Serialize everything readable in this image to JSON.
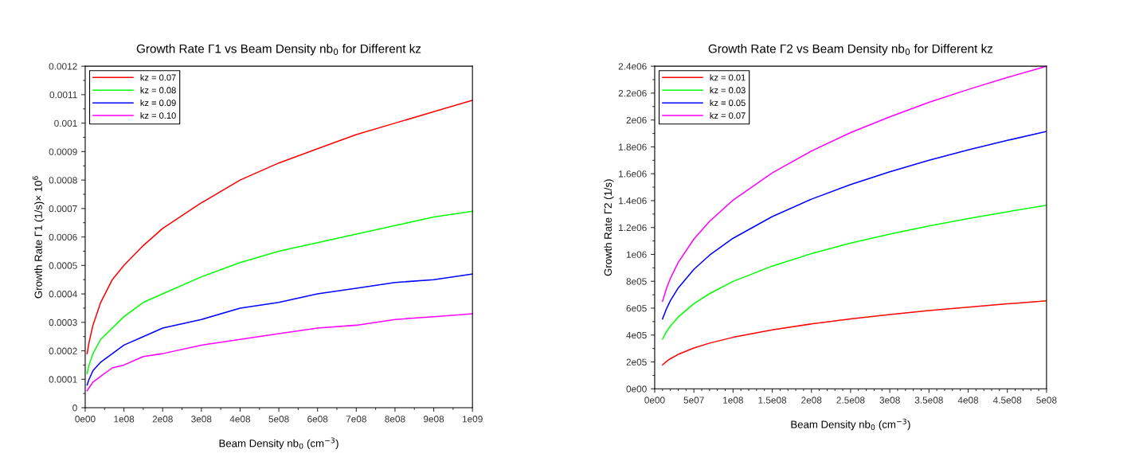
{
  "chart_data": [
    {
      "type": "line",
      "title": "Growth Rate Γ1 vs Beam Density nb$_{0}$ for Different kz",
      "xlabel": "Beam Density nb$_{0}$ (cm$^{−3}$)",
      "ylabel": "Growth Rate Γ1 (1/s)× 10$^{6}$",
      "x": [
        5000000.0,
        10000000.0,
        20000000.0,
        40000000.0,
        70000000.0,
        100000000.0,
        150000000.0,
        200000000.0,
        300000000.0,
        400000000.0,
        500000000.0,
        600000000.0,
        700000000.0,
        800000000.0,
        900000000.0,
        1000000000.0
      ],
      "series": [
        {
          "name": "kz = 0.07",
          "color": "#ff0000",
          "values": [
            0.00019,
            0.00023,
            0.00029,
            0.00037,
            0.00045,
            0.0005,
            0.00057,
            0.00063,
            0.00072,
            0.0008,
            0.00086,
            0.00091,
            0.00096,
            0.001,
            0.00104,
            0.00108
          ]
        },
        {
          "name": "kz = 0.08",
          "color": "#00ff00",
          "values": [
            0.00012,
            0.00015,
            0.00019,
            0.00024,
            0.00028,
            0.00032,
            0.00037,
            0.0004,
            0.00046,
            0.00051,
            0.00055,
            0.00058,
            0.00061,
            0.00064,
            0.00067,
            0.00069
          ]
        },
        {
          "name": "kz = 0.09",
          "color": "#0000ff",
          "values": [
            8e-05,
            0.0001,
            0.00013,
            0.00016,
            0.00019,
            0.00022,
            0.00025,
            0.00028,
            0.00031,
            0.00035,
            0.00037,
            0.0004,
            0.00042,
            0.00044,
            0.00045,
            0.00047
          ]
        },
        {
          "name": "kz = 0.10",
          "color": "#ff00ff",
          "values": [
            6e-05,
            7e-05,
            9e-05,
            0.00011,
            0.00014,
            0.00015,
            0.00018,
            0.00019,
            0.00022,
            0.00024,
            0.00026,
            0.00028,
            0.00029,
            0.00031,
            0.00032,
            0.00033
          ]
        }
      ],
      "xlim": [
        0,
        1000000000.0
      ],
      "xticks": [
        {
          "value": 0,
          "label": "0e00"
        },
        {
          "value": 100000000.0,
          "label": "1e08"
        },
        {
          "value": 200000000.0,
          "label": "2e08"
        },
        {
          "value": 300000000.0,
          "label": "3e08"
        },
        {
          "value": 400000000.0,
          "label": "4e08"
        },
        {
          "value": 500000000.0,
          "label": "5e08"
        },
        {
          "value": 600000000.0,
          "label": "6e08"
        },
        {
          "value": 700000000.0,
          "label": "7e08"
        },
        {
          "value": 800000000.0,
          "label": "8e08"
        },
        {
          "value": 900000000.0,
          "label": "9e08"
        },
        {
          "value": 1000000000.0,
          "label": "1e09"
        }
      ],
      "ylim": [
        0,
        0.0012
      ],
      "yticks": [
        0,
        0.0001,
        0.0002,
        0.0003,
        0.0004,
        0.0005,
        0.0006,
        0.0007,
        0.0008,
        0.0009,
        0.001,
        0.0011,
        0.0012
      ],
      "legend": "top left",
      "grid": false,
      "line_style": "solid",
      "marker": "none"
    },
    {
      "type": "line",
      "title": "Growth Rate Γ2 vs Beam Density nb$_{0}$ for Different kz",
      "xlabel": "Beam Density nb$_{0}$ (cm$^{−3}$)",
      "ylabel": "Growth Rate Γ2 (1/s)",
      "x": [
        10000000.0,
        15000000.0,
        20000000.0,
        30000000.0,
        50000000.0,
        70000000.0,
        100000000.0,
        150000000.0,
        200000000.0,
        250000000.0,
        300000000.0,
        350000000.0,
        400000000.0,
        450000000.0,
        500000000.0
      ],
      "series": [
        {
          "name": "kz = 0.01",
          "color": "#ff0000",
          "values": [
            178000,
            204000,
            224000,
            256000,
            304000,
            340000,
            383000,
            438000,
            483000,
            520000,
            552000,
            582000,
            608000,
            632000,
            655000
          ]
        },
        {
          "name": "kz = 0.03",
          "color": "#00ff00",
          "values": [
            370000,
            424000,
            467000,
            534000,
            633000,
            708000,
            799000,
            913000,
            1006000,
            1084000,
            1151000,
            1212000,
            1267000,
            1317000,
            1365000
          ]
        },
        {
          "name": "kz = 0.05",
          "color": "#0000ff",
          "values": [
            520000,
            595000,
            655000,
            750000,
            889000,
            994000,
            1120000,
            1281000,
            1411000,
            1520000,
            1614000,
            1701000,
            1777000,
            1848000,
            1915000
          ]
        },
        {
          "name": "kz = 0.07",
          "color": "#ff00ff",
          "values": [
            651000,
            746000,
            821000,
            940000,
            1114000,
            1246000,
            1404000,
            1606000,
            1769000,
            1906000,
            2023000,
            2131000,
            2227000,
            2316000,
            2400000
          ]
        }
      ],
      "xlim": [
        0,
        500000000.0
      ],
      "xticks": [
        {
          "value": 0,
          "label": "0e00"
        },
        {
          "value": 50000000.0,
          "label": "5e07"
        },
        {
          "value": 100000000.0,
          "label": "1e08"
        },
        {
          "value": 150000000.0,
          "label": "1.5e08"
        },
        {
          "value": 200000000.0,
          "label": "2e08"
        },
        {
          "value": 250000000.0,
          "label": "2.5e08"
        },
        {
          "value": 300000000.0,
          "label": "3e08"
        },
        {
          "value": 350000000.0,
          "label": "3.5e08"
        },
        {
          "value": 400000000.0,
          "label": "4e08"
        },
        {
          "value": 450000000.0,
          "label": "4.5e08"
        },
        {
          "value": 500000000.0,
          "label": "5e08"
        }
      ],
      "ylim": [
        0,
        2400000
      ],
      "yticks": [
        {
          "value": 0,
          "label": "0e00"
        },
        {
          "value": 200000,
          "label": "2e05"
        },
        {
          "value": 400000,
          "label": "4e05"
        },
        {
          "value": 600000,
          "label": "6e05"
        },
        {
          "value": 800000,
          "label": "8e05"
        },
        {
          "value": 1000000,
          "label": "1e06"
        },
        {
          "value": 1200000,
          "label": "1.2e06"
        },
        {
          "value": 1400000,
          "label": "1.4e06"
        },
        {
          "value": 1600000,
          "label": "1.6e06"
        },
        {
          "value": 1800000,
          "label": "1.8e06"
        },
        {
          "value": 2000000,
          "label": "2e06"
        },
        {
          "value": 2200000,
          "label": "2.2e06"
        },
        {
          "value": 2400000,
          "label": "2.4e06"
        }
      ],
      "legend": "top left",
      "grid": false,
      "line_style": "solid",
      "marker": "none"
    }
  ]
}
